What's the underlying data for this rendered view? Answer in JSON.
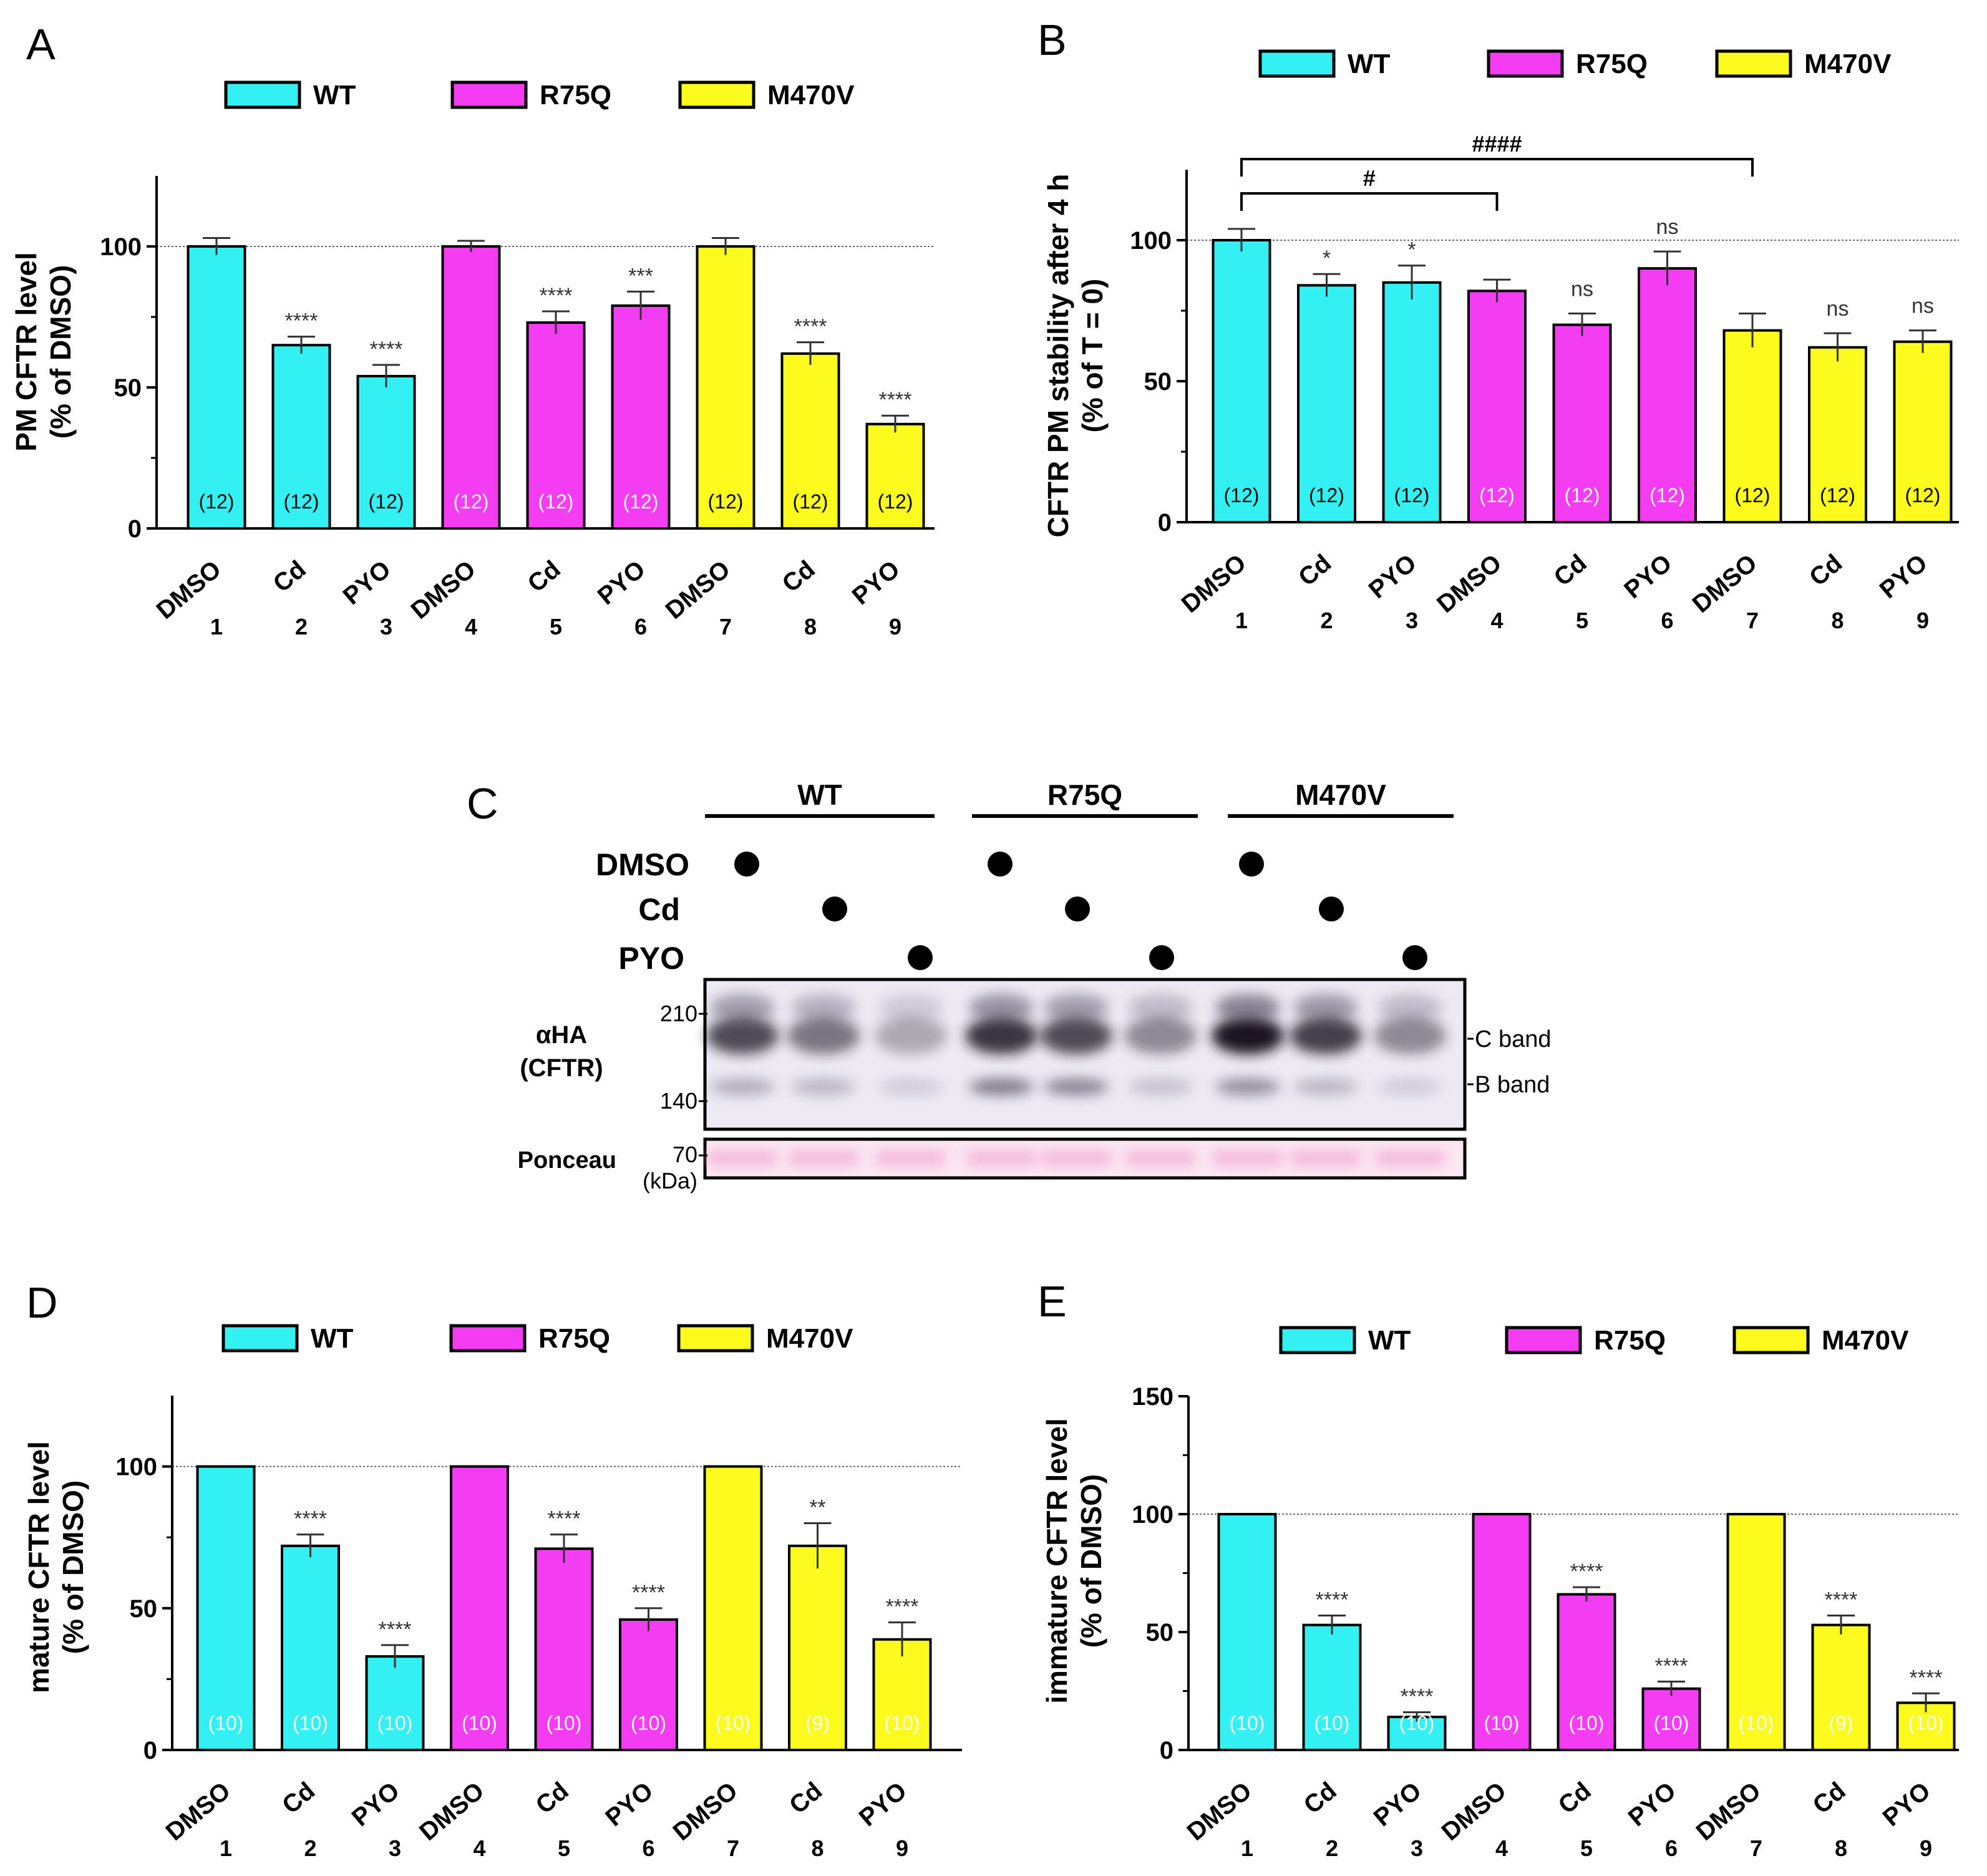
{
  "colors": {
    "WT": "#33f0f2",
    "R75Q": "#f43cf2",
    "M470V": "#fdfa1e"
  },
  "panel_labels": {
    "A": "A",
    "B": "B",
    "C": "C",
    "D": "D",
    "E": "E"
  },
  "chart_data": [
    {
      "panel": "A",
      "type": "bar",
      "legend": [
        "WT",
        "R75Q",
        "M470V"
      ],
      "ylabel_line1": "PM CFTR level",
      "ylabel_line2": "(% of DMSO)",
      "ylim": [
        0,
        125
      ],
      "yticks": [
        "0",
        "50",
        "100"
      ],
      "reference_line": 100,
      "categories": [
        "DMSO",
        "Cd",
        "PYO",
        "DMSO",
        "Cd",
        "PYO",
        "DMSO",
        "Cd",
        "PYO"
      ],
      "lane_numbers": [
        "1",
        "2",
        "3",
        "4",
        "5",
        "6",
        "7",
        "8",
        "9"
      ],
      "groups": [
        "WT",
        "WT",
        "WT",
        "R75Q",
        "R75Q",
        "R75Q",
        "M470V",
        "M470V",
        "M470V"
      ],
      "values": [
        100,
        65,
        54,
        100,
        73,
        79,
        100,
        62,
        37
      ],
      "errors": [
        3,
        3,
        4,
        2,
        4,
        5,
        3,
        4,
        3
      ],
      "n_labels": [
        "(12)",
        "(12)",
        "(12)",
        "(12)",
        "(12)",
        "(12)",
        "(12)",
        "(12)",
        "(12)"
      ],
      "significance": [
        "",
        "****",
        "****",
        "",
        "****",
        "***",
        "",
        "****",
        "****"
      ]
    },
    {
      "panel": "B",
      "type": "bar",
      "legend": [
        "WT",
        "R75Q",
        "M470V"
      ],
      "ylabel_line1": "CFTR PM stability after 4 h",
      "ylabel_line2": "(% of T = 0)",
      "ylim": [
        0,
        125
      ],
      "yticks": [
        "0",
        "50",
        "100"
      ],
      "reference_line": 100,
      "categories": [
        "DMSO",
        "Cd",
        "PYO",
        "DMSO",
        "Cd",
        "PYO",
        "DMSO",
        "Cd",
        "PYO"
      ],
      "lane_numbers": [
        "1",
        "2",
        "3",
        "4",
        "5",
        "6",
        "7",
        "8",
        "9"
      ],
      "groups": [
        "WT",
        "WT",
        "WT",
        "R75Q",
        "R75Q",
        "R75Q",
        "M470V",
        "M470V",
        "M470V"
      ],
      "values": [
        100,
        84,
        85,
        82,
        70,
        90,
        68,
        62,
        64
      ],
      "errors": [
        4,
        4,
        6,
        4,
        4,
        6,
        6,
        5,
        4
      ],
      "n_labels": [
        "(12)",
        "(12)",
        "(12)",
        "(12)",
        "(12)",
        "(12)",
        "(12)",
        "(12)",
        "(12)"
      ],
      "significance": [
        "",
        "*",
        "*",
        "",
        "ns",
        "ns",
        "",
        "ns",
        "ns"
      ],
      "brackets": [
        {
          "from": 0,
          "to": 3,
          "label": "#"
        },
        {
          "from": 0,
          "to": 6,
          "label": "####"
        }
      ]
    },
    {
      "panel": "D",
      "type": "bar",
      "legend": [
        "WT",
        "R75Q",
        "M470V"
      ],
      "ylabel_line1": "mature CFTR level",
      "ylabel_line2": "(% of DMSO)",
      "ylim": [
        0,
        125
      ],
      "yticks": [
        "0",
        "50",
        "100"
      ],
      "reference_line": 100,
      "categories": [
        "DMSO",
        "Cd",
        "PYO",
        "DMSO",
        "Cd",
        "PYO",
        "DMSO",
        "Cd",
        "PYO"
      ],
      "lane_numbers": [
        "1",
        "2",
        "3",
        "4",
        "5",
        "6",
        "7",
        "8",
        "9"
      ],
      "groups": [
        "WT",
        "WT",
        "WT",
        "R75Q",
        "R75Q",
        "R75Q",
        "M470V",
        "M470V",
        "M470V"
      ],
      "values": [
        100,
        72,
        33,
        100,
        71,
        46,
        100,
        72,
        39
      ],
      "errors": [
        0,
        4,
        4,
        0,
        5,
        4,
        0,
        8,
        6
      ],
      "n_labels": [
        "(10)",
        "(10)",
        "(10)",
        "(10)",
        "(10)",
        "(10)",
        "(10)",
        "(9)",
        "(10)"
      ],
      "significance": [
        "",
        "****",
        "****",
        "",
        "****",
        "****",
        "",
        "**",
        "****"
      ]
    },
    {
      "panel": "E",
      "type": "bar",
      "legend": [
        "WT",
        "R75Q",
        "M470V"
      ],
      "ylabel_line1": "immature CFTR level",
      "ylabel_line2": "(% of DMSO)",
      "ylim": [
        0,
        150
      ],
      "yticks": [
        "0",
        "50",
        "100",
        "150"
      ],
      "reference_line": 100,
      "categories": [
        "DMSO",
        "Cd",
        "PYO",
        "DMSO",
        "Cd",
        "PYO",
        "DMSO",
        "Cd",
        "PYO"
      ],
      "lane_numbers": [
        "1",
        "2",
        "3",
        "4",
        "5",
        "6",
        "7",
        "8",
        "9"
      ],
      "groups": [
        "WT",
        "WT",
        "WT",
        "R75Q",
        "R75Q",
        "R75Q",
        "M470V",
        "M470V",
        "M470V"
      ],
      "values": [
        100,
        53,
        14,
        100,
        66,
        26,
        100,
        53,
        20
      ],
      "errors": [
        0,
        4,
        2,
        0,
        3,
        3,
        0,
        4,
        4
      ],
      "n_labels": [
        "(10)",
        "(10)",
        "(10)",
        "(10)",
        "(10)",
        "(10)",
        "(10)",
        "(9)",
        "(10)"
      ],
      "significance": [
        "",
        "****",
        "****",
        "",
        "****",
        "****",
        "",
        "****",
        "****"
      ]
    }
  ],
  "blot": {
    "group_labels": [
      "WT",
      "R75Q",
      "M470V"
    ],
    "treatment_labels": [
      "DMSO",
      "Cd",
      "PYO"
    ],
    "lane_treatments": [
      "DMSO",
      "Cd",
      "PYO",
      "DMSO",
      "Cd",
      "PYO",
      "DMSO",
      "Cd",
      "PYO"
    ],
    "antibody_label_line1": "αHA",
    "antibody_label_line2": "(CFTR)",
    "loading_label": "Ponceau",
    "markers": [
      "210",
      "140",
      "70"
    ],
    "marker_unit": "(kDa)",
    "band_labels": [
      "C band",
      "B band"
    ],
    "c_band_intensity": [
      0.75,
      0.55,
      0.3,
      0.85,
      0.75,
      0.45,
      1.0,
      0.8,
      0.45
    ],
    "b_band_intensity": [
      0.3,
      0.25,
      0.15,
      0.55,
      0.5,
      0.2,
      0.45,
      0.25,
      0.15
    ]
  }
}
